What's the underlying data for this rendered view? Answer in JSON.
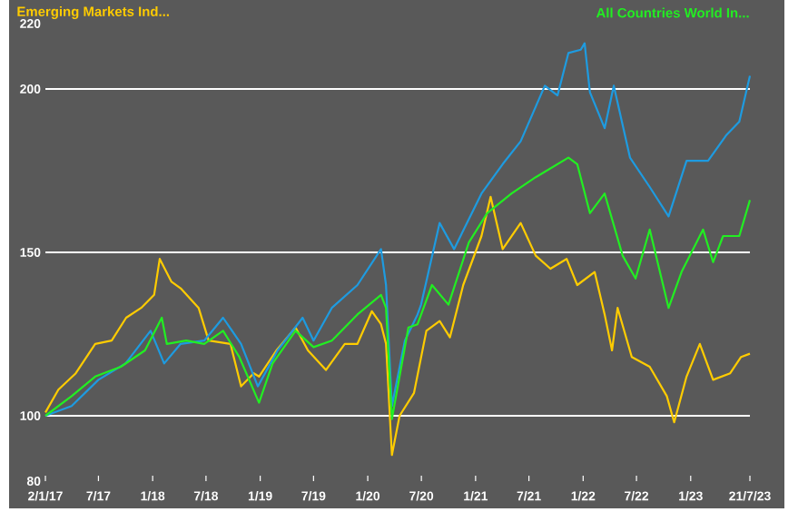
{
  "chart_data": {
    "type": "line",
    "xlim": [
      "2017-01-02",
      "2023-07-21"
    ],
    "ylim": [
      80,
      220
    ],
    "xticks": [
      {
        "value": "2017-01-02",
        "label": "2/1/17"
      },
      {
        "value": "2017-07-01",
        "label": "7/17"
      },
      {
        "value": "2018-01-01",
        "label": "1/18"
      },
      {
        "value": "2018-07-01",
        "label": "7/18"
      },
      {
        "value": "2019-01-01",
        "label": "1/19"
      },
      {
        "value": "2019-07-01",
        "label": "7/19"
      },
      {
        "value": "2020-01-01",
        "label": "1/20"
      },
      {
        "value": "2020-07-01",
        "label": "7/20"
      },
      {
        "value": "2021-01-01",
        "label": "1/21"
      },
      {
        "value": "2021-07-01",
        "label": "7/21"
      },
      {
        "value": "2022-01-01",
        "label": "1/22"
      },
      {
        "value": "2022-07-01",
        "label": "7/22"
      },
      {
        "value": "2023-01-01",
        "label": "1/23"
      },
      {
        "value": "2023-07-21",
        "label": "21/7/23"
      }
    ],
    "yticks": [
      80,
      100,
      150,
      200,
      220
    ],
    "grid": "y",
    "legend": "top",
    "series": [
      {
        "name": "Emerging Markets Ind...",
        "color": "#ffcc00",
        "x": [
          "2017-01-02",
          "2017-02-15",
          "2017-04-15",
          "2017-06-20",
          "2017-08-15",
          "2017-10-03",
          "2017-11-23",
          "2018-01-06",
          "2018-01-25",
          "2018-03-06",
          "2018-04-06",
          "2018-06-06",
          "2018-07-10",
          "2018-09-22",
          "2018-10-28",
          "2018-12-10",
          "2018-12-28",
          "2019-02-25",
          "2019-05-01",
          "2019-06-12",
          "2019-08-12",
          "2019-10-15",
          "2019-11-27",
          "2020-01-15",
          "2020-02-15",
          "2020-03-03",
          "2020-03-23",
          "2020-04-18",
          "2020-06-06",
          "2020-07-18",
          "2020-09-01",
          "2020-10-06",
          "2020-11-20",
          "2021-01-21",
          "2021-02-21",
          "2021-04-03",
          "2021-06-03",
          "2021-07-24",
          "2021-09-12",
          "2021-11-06",
          "2021-12-12",
          "2022-02-09",
          "2022-03-15",
          "2022-04-09",
          "2022-04-28",
          "2022-06-15",
          "2022-08-15",
          "2022-10-12",
          "2022-11-06",
          "2022-12-18",
          "2023-02-01",
          "2023-03-18",
          "2023-05-15",
          "2023-06-21",
          "2023-07-21"
        ],
        "values": [
          101,
          108,
          113,
          122,
          123,
          130,
          133,
          137,
          148,
          141,
          139,
          133,
          123,
          122,
          109,
          113,
          112,
          120,
          127,
          120,
          114,
          122,
          122,
          132,
          128,
          122,
          88,
          100,
          107,
          126,
          129,
          124,
          140,
          155,
          167,
          151,
          159,
          149,
          145,
          148,
          140,
          144,
          131,
          120,
          133,
          118,
          115,
          106,
          98,
          112,
          122,
          111,
          113,
          118,
          119
        ]
      },
      {
        "color": "#1e9be0",
        "x": [
          "2017-01-02",
          "2017-04-01",
          "2017-07-01",
          "2017-10-01",
          "2017-12-25",
          "2018-02-09",
          "2018-04-06",
          "2018-06-25",
          "2018-08-28",
          "2018-10-28",
          "2018-12-24",
          "2019-03-01",
          "2019-05-25",
          "2019-07-01",
          "2019-09-01",
          "2019-11-27",
          "2020-02-15",
          "2020-03-03",
          "2020-03-23",
          "2020-05-06",
          "2020-06-18",
          "2020-06-30",
          "2020-09-01",
          "2020-10-20",
          "2021-01-21",
          "2021-04-03",
          "2021-06-03",
          "2021-08-24",
          "2021-10-06",
          "2021-11-12",
          "2021-12-24",
          "2022-01-06",
          "2022-01-24",
          "2022-03-15",
          "2022-04-15",
          "2022-06-09",
          "2022-08-15",
          "2022-10-18",
          "2022-12-18",
          "2023-03-01",
          "2023-05-03",
          "2023-06-15",
          "2023-07-21"
        ],
        "values": [
          100,
          103,
          111,
          116,
          126,
          116,
          122,
          123,
          130,
          122,
          109,
          120,
          130,
          123,
          133,
          140,
          151,
          140,
          103,
          123,
          131,
          134,
          159,
          151,
          168,
          177,
          184,
          201,
          198,
          211,
          212,
          214,
          199,
          188,
          201,
          179,
          170,
          161,
          178,
          178,
          186,
          190,
          204
        ]
      },
      {
        "name": "All Countries World In...",
        "color": "#22ee22",
        "x": [
          "2017-01-02",
          "2017-04-01",
          "2017-06-20",
          "2017-09-15",
          "2017-12-06",
          "2018-02-01",
          "2018-02-18",
          "2018-04-25",
          "2018-06-25",
          "2018-08-28",
          "2018-10-22",
          "2018-12-28",
          "2019-02-12",
          "2019-05-01",
          "2019-07-01",
          "2019-09-01",
          "2019-11-27",
          "2020-02-15",
          "2020-03-03",
          "2020-03-23",
          "2020-05-18",
          "2020-06-18",
          "2020-08-06",
          "2020-10-01",
          "2020-12-09",
          "2021-02-09",
          "2021-05-03",
          "2021-07-24",
          "2021-11-12",
          "2021-12-12",
          "2022-01-24",
          "2022-03-15",
          "2022-05-15",
          "2022-06-28",
          "2022-08-15",
          "2022-10-18",
          "2022-12-01",
          "2023-02-12",
          "2023-03-18",
          "2023-04-21",
          "2023-06-15",
          "2023-07-21"
        ],
        "values": [
          100,
          106,
          112,
          115,
          120,
          130,
          122,
          123,
          122,
          126,
          118,
          104,
          116,
          126,
          121,
          123,
          131,
          137,
          133,
          99,
          127,
          128,
          140,
          134,
          153,
          162,
          168,
          173,
          179,
          177,
          162,
          168,
          149,
          142,
          157,
          133,
          144,
          157,
          147,
          155,
          155,
          166
        ]
      }
    ]
  }
}
